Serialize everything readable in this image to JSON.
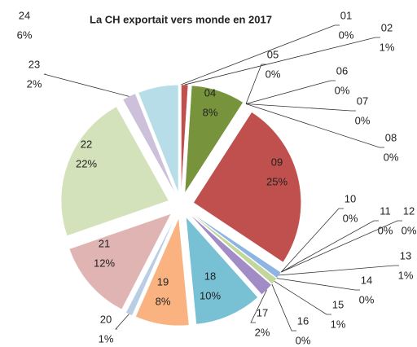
{
  "chart_data": {
    "type": "pie",
    "title": "La CH exportait vers monde en 2017",
    "categories": [
      "01",
      "02",
      "04",
      "05",
      "06",
      "07",
      "08",
      "09",
      "10",
      "11",
      "12",
      "13",
      "14",
      "15",
      "16",
      "17",
      "18",
      "19",
      "20",
      "21",
      "22",
      "23",
      "24"
    ],
    "values": [
      0,
      1,
      8,
      0,
      0,
      0,
      0,
      25,
      0,
      0,
      0,
      1,
      0,
      1,
      0,
      2,
      10,
      8,
      1,
      12,
      22,
      2,
      6
    ],
    "value_labels": [
      "0%",
      "1%",
      "8%",
      "0%",
      "0%",
      "0%",
      "0%",
      "25%",
      "0%",
      "0%",
      "0%",
      "1%",
      "0%",
      "1%",
      "0%",
      "2%",
      "10%",
      "8%",
      "1%",
      "12%",
      "22%",
      "2%",
      "6%"
    ],
    "colors": [
      "#8b2b2b",
      "#c0504d",
      "#77933c",
      "#8064a2",
      "#4bacc6",
      "#f79646",
      "#4f81bd",
      "#c0504d",
      "#9bbb59",
      "#4bacc6",
      "#f79646",
      "#8eb4e3",
      "#d99694",
      "#c3d69b",
      "#b3a2c7",
      "#a28cc6",
      "#78c0d4",
      "#fab380",
      "#b9cde5",
      "#e0b4b3",
      "#d3e2bb",
      "#ccc0da",
      "#b7dee8"
    ]
  }
}
